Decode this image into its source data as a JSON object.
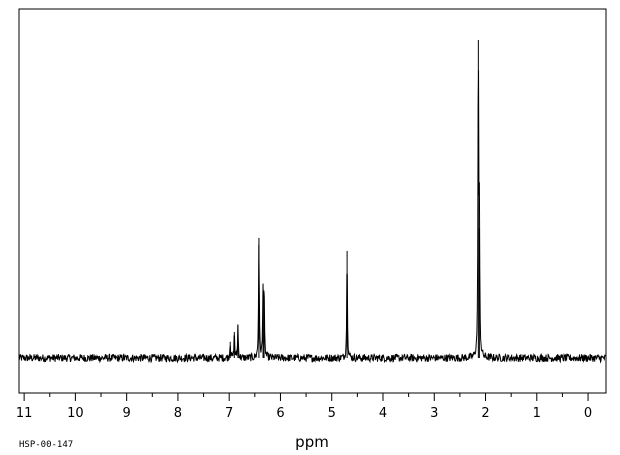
{
  "chart_data": {
    "type": "line",
    "title": "",
    "xlabel": "ppm",
    "ylabel": "",
    "x_reversed": true,
    "xlim": [
      11.1,
      -0.35
    ],
    "ylim": [
      -0.05,
      1.05
    ],
    "grid": false,
    "legend": "none",
    "major_ticks": [
      11,
      10,
      9,
      8,
      7,
      6,
      5,
      4,
      3,
      2,
      1,
      0
    ],
    "tick_labels": [
      "11",
      "10",
      "9",
      "8",
      "7",
      "6",
      "5",
      "4",
      "3",
      "2",
      "1",
      "0"
    ],
    "minor_tick_step": 0.5,
    "baseline": 0.0,
    "noise_amplitude": 0.012,
    "line_color": "#000000",
    "peaks": [
      {
        "ppm": 6.98,
        "height": 0.05
      },
      {
        "ppm": 6.9,
        "height": 0.08
      },
      {
        "ppm": 6.83,
        "height": 0.1
      },
      {
        "ppm": 6.42,
        "height": 0.37
      },
      {
        "ppm": 6.34,
        "height": 0.21
      },
      {
        "ppm": 6.32,
        "height": 0.2
      },
      {
        "ppm": 4.7,
        "height": 0.33
      },
      {
        "ppm": 2.14,
        "height": 0.98
      },
      {
        "ppm": 2.12,
        "height": 0.4
      }
    ]
  },
  "footer": {
    "code": "HSP-00-147"
  }
}
